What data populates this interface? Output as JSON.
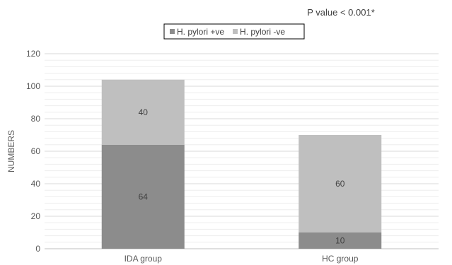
{
  "chart_data": {
    "type": "bar",
    "stacked": true,
    "categories": [
      "IDA group",
      "HC group"
    ],
    "series": [
      {
        "name": "H. pylori +ve",
        "values": [
          64,
          10
        ],
        "color": "#8c8c8c"
      },
      {
        "name": "H. pylori -ve",
        "values": [
          40,
          60
        ],
        "color": "#bfbfbf"
      }
    ],
    "ylabel": "NUMBERS",
    "xlabel": "",
    "ylim": [
      0,
      120
    ],
    "yticks": [
      0,
      20,
      40,
      60,
      80,
      100,
      120
    ],
    "grid": true,
    "legend_position": "top",
    "annotation": "P value < 0.001*"
  }
}
